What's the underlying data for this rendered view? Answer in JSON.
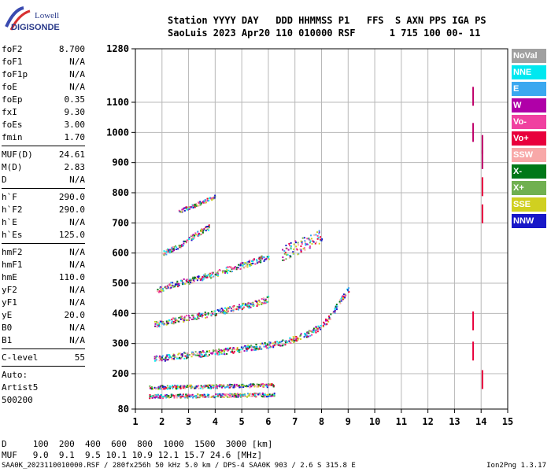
{
  "logo": {
    "line1": "Lowell",
    "line2": "DIGISONDE"
  },
  "header": {
    "line1": "Station YYYY DAY   DDD HHMMSS P1   FFS  S AXN PPS IGA PS",
    "line2": "SaoLuis 2023 Apr20 110 010000 RSF      1 715 100 00- 11"
  },
  "params": [
    {
      "name": "foF2",
      "value": "8.700"
    },
    {
      "name": "foF1",
      "value": "N/A"
    },
    {
      "name": "foF1p",
      "value": "N/A"
    },
    {
      "name": "foE",
      "value": "N/A"
    },
    {
      "name": "foEp",
      "value": "0.35"
    },
    {
      "name": "fxI",
      "value": "9.30"
    },
    {
      "name": "foEs",
      "value": "3.00"
    },
    {
      "name": "fmin",
      "value": "1.70"
    },
    {
      "sep": true
    },
    {
      "name": "MUF(D)",
      "value": "24.61"
    },
    {
      "name": "M(D)",
      "value": "2.83"
    },
    {
      "name": "D",
      "value": "N/A"
    },
    {
      "sep": true
    },
    {
      "name": "h`F",
      "value": "290.0"
    },
    {
      "name": "h`F2",
      "value": "290.0"
    },
    {
      "name": "h`E",
      "value": "N/A"
    },
    {
      "name": "h`Es",
      "value": "125.0"
    },
    {
      "sep": true
    },
    {
      "name": "hmF2",
      "value": "N/A"
    },
    {
      "name": "hmF1",
      "value": "N/A"
    },
    {
      "name": "hmE",
      "value": "110.0"
    },
    {
      "name": "yF2",
      "value": "N/A"
    },
    {
      "name": "yF1",
      "value": "N/A"
    },
    {
      "name": "yE",
      "value": "20.0"
    },
    {
      "name": "B0",
      "value": "N/A"
    },
    {
      "name": "B1",
      "value": "N/A"
    },
    {
      "sep": true
    },
    {
      "name": "C-level",
      "value": "55"
    },
    {
      "sep": true
    },
    {
      "text": "Auto:"
    },
    {
      "text": "Artist5"
    },
    {
      "text": "500200"
    }
  ],
  "legend": [
    {
      "label": "NoVal",
      "color": "#a0a0a0"
    },
    {
      "label": "NNE",
      "color": "#00e8f0"
    },
    {
      "label": "E",
      "color": "#3aa8f0"
    },
    {
      "label": "W",
      "color": "#b000a8"
    },
    {
      "label": "Vo-",
      "color": "#f040a0"
    },
    {
      "label": "Vo+",
      "color": "#e8003c"
    },
    {
      "label": "SSW",
      "color": "#f8a8a8"
    },
    {
      "label": "X-",
      "color": "#007818"
    },
    {
      "label": "X+",
      "color": "#70b050"
    },
    {
      "label": "SSE",
      "color": "#d0d020"
    },
    {
      "label": "NNW",
      "color": "#1818c8"
    }
  ],
  "muf": {
    "d_row": "D     100  200  400  600  800  1000  1500  3000 [km]",
    "muf_row": "MUF   9.0  9.1  9.5 10.1 10.9 12.1 15.7 24.6 [MHz]"
  },
  "footer": {
    "left": "SAA0K_2023110010000.RSF / 280fx256h 50 kHz 5.0 km / DPS-4 SAA0K 903 / 2.6 S 315.8 E",
    "right": "Ion2Png 1.3.17"
  },
  "chart_data": {
    "type": "scatter",
    "title": "",
    "xlabel": "",
    "ylabel": "",
    "xlim": [
      1,
      15
    ],
    "ylim": [
      80,
      1280
    ],
    "x_ticks": [
      1,
      2,
      3,
      4,
      5,
      6,
      7,
      8,
      9,
      10,
      11,
      12,
      13,
      14,
      15
    ],
    "y_ticks": [
      80,
      200,
      300,
      400,
      500,
      600,
      700,
      800,
      900,
      1000,
      1100,
      1280
    ],
    "y_breaks": [
      80,
      200,
      1100,
      1280
    ],
    "grid": true,
    "traces": [
      {
        "name": "F2 1st hop",
        "points": [
          [
            1.7,
            250
          ],
          [
            2.5,
            260
          ],
          [
            3.5,
            268
          ],
          [
            4.5,
            278
          ],
          [
            5.5,
            290
          ],
          [
            6.5,
            305
          ],
          [
            7.0,
            318
          ],
          [
            7.5,
            335
          ],
          [
            8.0,
            360
          ],
          [
            8.3,
            390
          ],
          [
            8.6,
            430
          ],
          [
            8.8,
            460
          ],
          [
            9.0,
            480
          ]
        ],
        "spread": 10
      },
      {
        "name": "F2 2nd hop",
        "points": [
          [
            1.7,
            365
          ],
          [
            2.5,
            380
          ],
          [
            3.5,
            395
          ],
          [
            4.5,
            415
          ],
          [
            5.5,
            435
          ],
          [
            6.0,
            450
          ]
        ],
        "spread": 10
      },
      {
        "name": "F2 3rd hop",
        "points": [
          [
            1.8,
            480
          ],
          [
            2.5,
            500
          ],
          [
            3.5,
            520
          ],
          [
            4.5,
            548
          ],
          [
            5.5,
            575
          ],
          [
            6.0,
            592
          ]
        ],
        "spread": 10
      },
      {
        "name": "diffuse",
        "points": [
          [
            6.5,
            600
          ],
          [
            7.0,
            620
          ],
          [
            7.5,
            640
          ],
          [
            8.0,
            660
          ]
        ],
        "spread": 25
      },
      {
        "name": "4th hop",
        "points": [
          [
            2.0,
            600
          ],
          [
            2.7,
            630
          ],
          [
            3.2,
            660
          ],
          [
            3.8,
            690
          ]
        ],
        "spread": 8
      },
      {
        "name": "5th hop",
        "points": [
          [
            2.6,
            740
          ],
          [
            3.5,
            770
          ],
          [
            4.0,
            790
          ]
        ],
        "spread": 6
      },
      {
        "name": "Es 1st",
        "points": [
          [
            1.5,
            125
          ],
          [
            2.5,
            126
          ],
          [
            4.0,
            128
          ],
          [
            5.5,
            130
          ],
          [
            6.2,
            130
          ]
        ],
        "spread": 6
      },
      {
        "name": "Es 2nd",
        "points": [
          [
            1.5,
            155
          ],
          [
            2.5,
            157
          ],
          [
            3.5,
            158
          ],
          [
            4.5,
            160
          ],
          [
            5.5,
            162
          ],
          [
            6.2,
            162
          ]
        ],
        "spread": 6
      },
      {
        "name": "vertical",
        "points": [
          [
            13.7,
            1120
          ],
          [
            13.7,
            1000
          ],
          [
            14.05,
            960
          ],
          [
            14.05,
            910
          ],
          [
            14.05,
            820
          ],
          [
            14.05,
            730
          ],
          [
            13.7,
            375
          ],
          [
            13.7,
            275
          ],
          [
            14.05,
            180
          ]
        ],
        "spread": 12
      }
    ]
  }
}
